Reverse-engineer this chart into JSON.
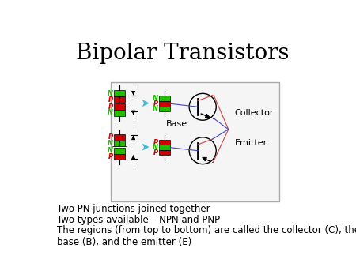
{
  "title": "Bipolar Transistors",
  "title_fontsize": 20,
  "bullet1": "Two PN junctions joined together",
  "bullet2": "Two types available – NPN and PNP",
  "bullet3": "The regions (from top to bottom) are called the collector (C), the\nbase (B), and the emitter (E)",
  "text_fontsize": 8.5,
  "label_collector": "Collector",
  "label_base": "Base",
  "label_emitter": "Emitter",
  "green": "#22BB00",
  "red": "#CC0000",
  "cyan": "#44BBDD",
  "black": "#000000",
  "blue": "#4444CC",
  "red_line": "#CC4444",
  "bg_box": "#F5F5F5",
  "box_border": "#AAAAAA",
  "fig_w": 4.5,
  "fig_h": 3.38,
  "dpi": 100
}
